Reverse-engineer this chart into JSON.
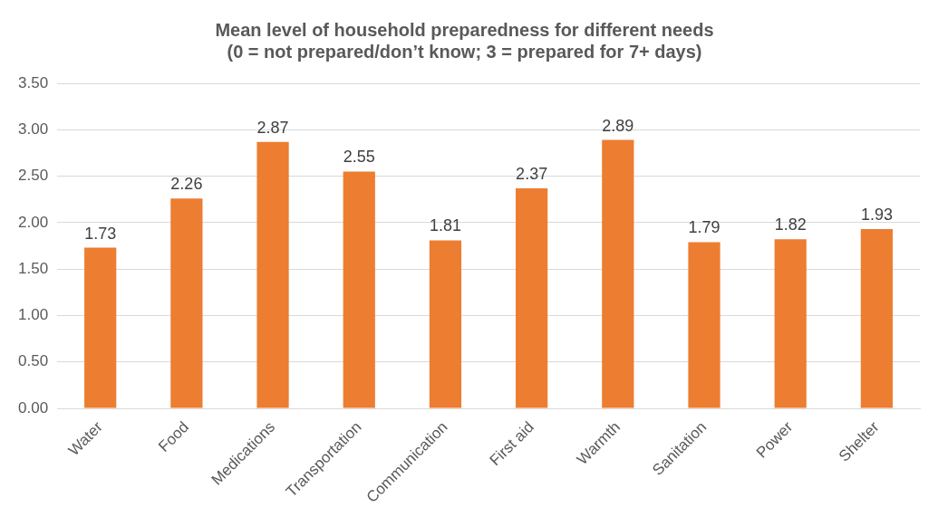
{
  "chart_data": {
    "type": "bar",
    "title": "Mean level of household preparedness for different needs",
    "subtitle": "(0 = not prepared/don’t know; 3 = prepared for 7+ days)",
    "categories": [
      "Water",
      "Food",
      "Medications",
      "Transportation",
      "Communication",
      "First aid",
      "Warmth",
      "Sanitation",
      "Power",
      "Shelter"
    ],
    "values": [
      1.73,
      2.26,
      2.87,
      2.55,
      1.81,
      2.37,
      2.89,
      1.79,
      1.82,
      1.93
    ],
    "color": "#ed7d31",
    "ylim": [
      0,
      3.5
    ],
    "yticks": [
      {
        "value": 0,
        "label": "0.00"
      },
      {
        "value": 0.5,
        "label": "0.50"
      },
      {
        "value": 1,
        "label": "1.00"
      },
      {
        "value": 1.5,
        "label": "1.50"
      },
      {
        "value": 2,
        "label": "2.00"
      },
      {
        "value": 2.5,
        "label": "2.50"
      },
      {
        "value": 3,
        "label": "3.00"
      },
      {
        "value": 3.5,
        "label": "3.50"
      }
    ],
    "grid": "y",
    "data_labels": true
  }
}
